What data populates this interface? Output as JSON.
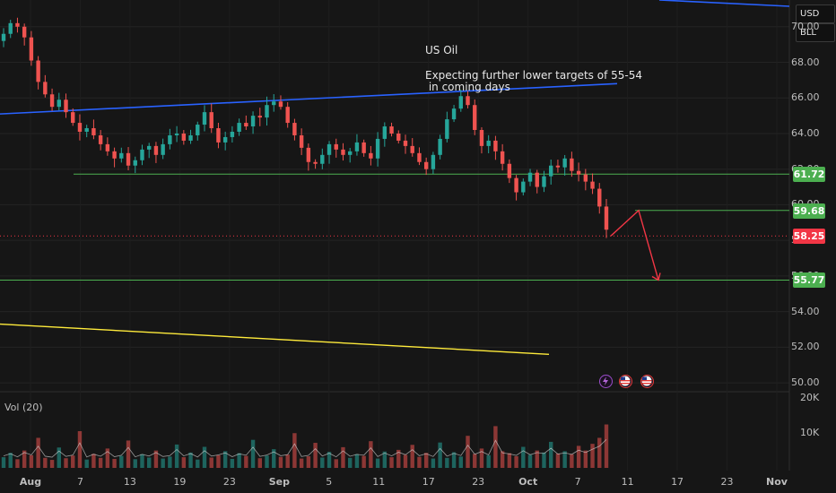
{
  "chart_data": {
    "type": "candlestick",
    "title": "US Oil",
    "annotation_lines": [
      "Expecting further lower targets of 55-54",
      " in coming days"
    ],
    "currency": "USD",
    "unit": "BLL",
    "y_ticks": [
      "70.00",
      "68.00",
      "66.00",
      "64.00",
      "62.00",
      "60.00",
      "58.00",
      "56.00",
      "54.00",
      "52.00",
      "50.00"
    ],
    "y_tick_values": [
      70,
      68,
      66,
      64,
      62,
      60,
      58,
      56,
      54,
      52,
      50
    ],
    "ylim": [
      49.5,
      71.5
    ],
    "x_ticks": [
      "Aug",
      "7",
      "13",
      "19",
      "23",
      "Sep",
      "5",
      "11",
      "17",
      "23",
      "Oct",
      "7",
      "11",
      "17",
      "23",
      "Nov"
    ],
    "price_labels": [
      {
        "value": 61.72,
        "label": "61.72",
        "color": "#4caf50"
      },
      {
        "value": 59.68,
        "label": "59.68",
        "color": "#4caf50"
      },
      {
        "value": 58.25,
        "label": "58.25",
        "color": "#f23645"
      },
      {
        "value": 55.77,
        "label": "55.77",
        "color": "#4caf50"
      }
    ],
    "horizontal_levels": [
      61.72,
      59.68,
      55.77
    ],
    "blue_trendline": {
      "start": 65.1,
      "end": 66.8
    },
    "yellow_trendline": {
      "start": 53.3,
      "end": 51.6
    },
    "projection_path": [
      58.25,
      59.68,
      55.77
    ],
    "close_series": [
      69.6,
      70.2,
      70.0,
      69.4,
      68.1,
      66.9,
      66.2,
      65.5,
      65.9,
      65.2,
      64.6,
      64.1,
      64.3,
      63.9,
      63.4,
      63.0,
      62.6,
      62.9,
      62.2,
      62.5,
      63.1,
      63.3,
      62.8,
      63.4,
      63.9,
      64.0,
      63.6,
      63.9,
      64.5,
      65.2,
      64.3,
      63.5,
      63.8,
      64.1,
      64.6,
      64.4,
      65.0,
      64.9,
      65.6,
      65.8,
      65.5,
      64.6,
      63.9,
      63.2,
      62.4,
      62.3,
      62.8,
      63.4,
      63.1,
      62.8,
      63.0,
      63.5,
      62.9,
      62.6,
      63.7,
      64.4,
      64.0,
      63.6,
      63.3,
      62.9,
      62.4,
      62.0,
      62.8,
      63.7,
      64.8,
      65.4,
      66.1,
      65.6,
      64.2,
      63.3,
      63.6,
      63.0,
      62.3,
      61.5,
      60.7,
      61.3,
      61.8,
      61.0,
      61.6,
      62.2,
      62.1,
      62.6,
      61.9,
      61.7,
      61.3,
      60.9,
      59.9,
      58.6
    ],
    "volume_label": "Vol (20)",
    "volume_ticks": [
      "20K",
      "10K"
    ],
    "volume_tick_values": [
      20000,
      10000
    ],
    "volume_max": 22000,
    "volume_series": [
      3200,
      4500,
      2600,
      5200,
      3800,
      9000,
      3000,
      2400,
      6100,
      2900,
      3700,
      11000,
      2500,
      4200,
      3000,
      5800,
      2700,
      3600,
      8200,
      2600,
      4100,
      3100,
      5200,
      2800,
      3400,
      7000,
      3200,
      4600,
      2500,
      6300,
      3100,
      3800,
      5000,
      2700,
      4400,
      3600,
      8400,
      2900,
      3700,
      5600,
      3300,
      4000,
      10400,
      2800,
      3500,
      7500,
      3100,
      4800,
      2600,
      6200,
      3000,
      4100,
      3600,
      8000,
      2800,
      4900,
      3200,
      5400,
      3900,
      6900,
      3300,
      4500,
      2800,
      7600,
      3000,
      4700,
      3400,
      9600,
      4200,
      5800,
      3800,
      12500,
      5000,
      4400,
      3500,
      6300,
      3900,
      5200,
      4600,
      7800,
      4300,
      5000,
      4100,
      6600,
      5200,
      7200,
      9000,
      13000
    ],
    "colors": {
      "up": "#26a69a",
      "down": "#ef5350",
      "blue_line": "#2962ff",
      "yellow_line": "#ffeb3b",
      "level": "#4caf50",
      "arrow": "#f23645"
    }
  },
  "event_icons": [
    "lightning-icon",
    "us-flag-icon",
    "us-flag-icon"
  ]
}
